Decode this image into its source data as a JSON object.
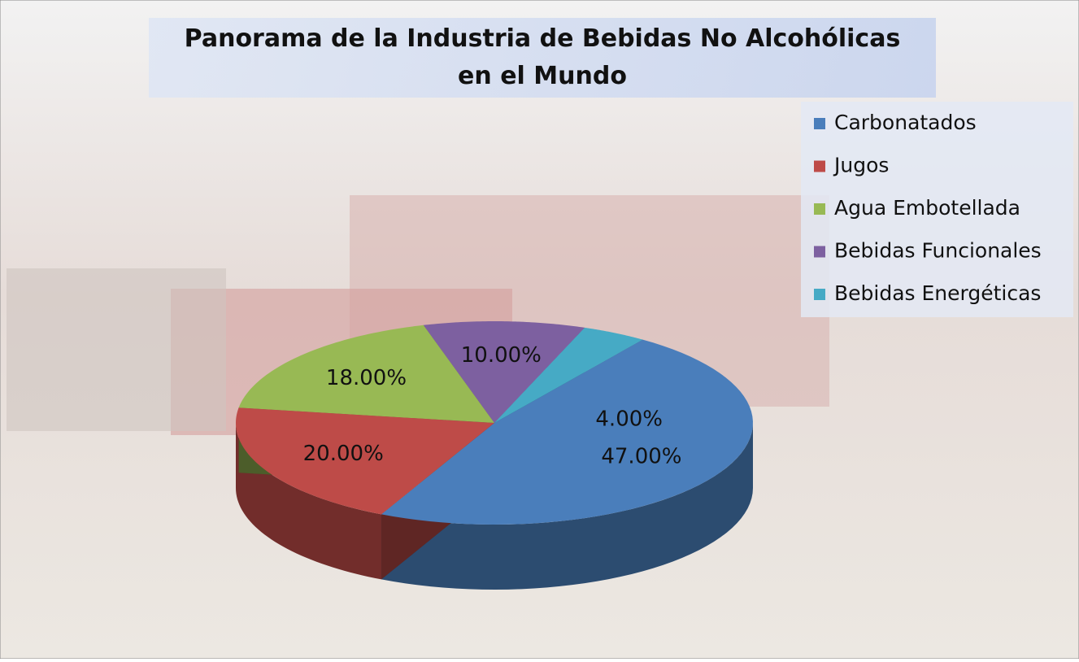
{
  "chart_data": {
    "type": "pie3d",
    "title": "Panorama de la Industria de Bebidas No Alcohólicas en el Mundo",
    "categories": [
      "Carbonatados",
      "Jugos",
      "Agua Embotellada",
      "Bebidas Funcionales",
      "Bebidas Energéticas"
    ],
    "values": [
      47,
      20,
      18,
      10,
      4
    ],
    "value_labels": [
      "47.00%",
      "20.00%",
      "18.00%",
      "10.00%",
      "4.00%"
    ],
    "colors": [
      "#4a7ebb",
      "#be4b48",
      "#98b954",
      "#7d60a0",
      "#46aac5"
    ],
    "legend": "top-right"
  }
}
